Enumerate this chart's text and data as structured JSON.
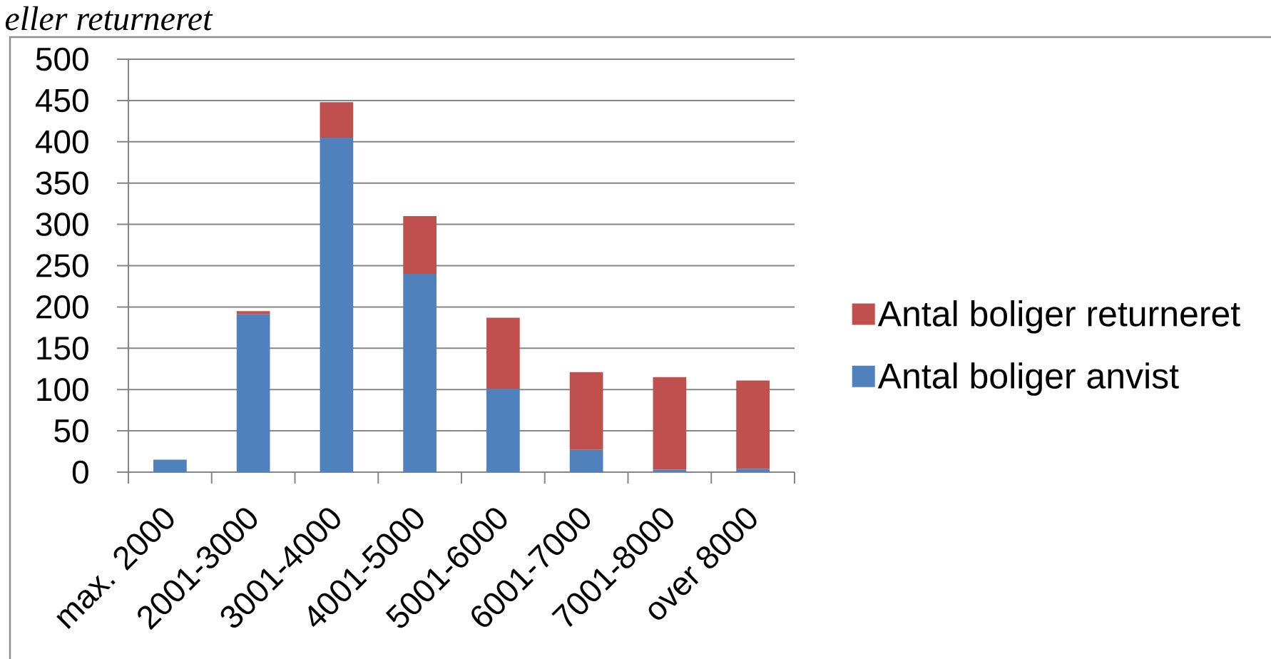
{
  "chart_data": {
    "type": "bar",
    "stacked": true,
    "title": "eller returneret",
    "categories": [
      "max. 2000",
      "2001-3000",
      "3001-4000",
      "4001-5000",
      "5001-6000",
      "6001-7000",
      "7001-8000",
      "over 8000"
    ],
    "series": [
      {
        "name": "Antal boliger anvist",
        "color": "#4f81bd",
        "values": [
          15,
          191,
          405,
          240,
          101,
          27,
          3,
          4
        ]
      },
      {
        "name": "Antal boliger returneret",
        "color": "#c0504d",
        "values": [
          null,
          4,
          43,
          70,
          86,
          94,
          112,
          107
        ]
      }
    ],
    "ylim": [
      0,
      500
    ],
    "yticks": [
      0,
      50,
      100,
      150,
      200,
      250,
      300,
      350,
      400,
      450,
      500
    ],
    "grid": "y",
    "legend": "right"
  }
}
